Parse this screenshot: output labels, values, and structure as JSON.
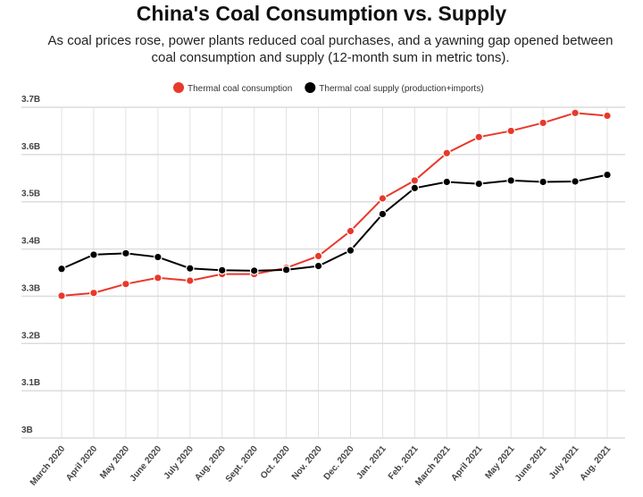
{
  "chart_data": {
    "type": "line",
    "title": "China's Coal Consumption vs. Supply",
    "subtitle": "As coal prices rose, power plants reduced coal purchases, and a yawning gap opened between coal consumption and supply (12-month sum in metric tons).",
    "categories": [
      "March 2020",
      "April 2020",
      "May 2020",
      "June 2020",
      "July 2020",
      "Aug. 2020",
      "Sept. 2020",
      "Oct. 2020",
      "Nov. 2020",
      "Dec. 2020",
      "Jan. 2021",
      "Feb. 2021",
      "March 2021",
      "April 2021",
      "May 2021",
      "June 2021",
      "July 2021",
      "Aug. 2021"
    ],
    "yticks": [
      3.0,
      3.1,
      3.2,
      3.3,
      3.4,
      3.5,
      3.6,
      3.7
    ],
    "ytick_labels": [
      "3B",
      "3.1B",
      "3.2B",
      "3.3B",
      "3.4B",
      "3.5B",
      "3.6B",
      "3.7B"
    ],
    "ylim": [
      3.0,
      3.7
    ],
    "yunit": "billion metric tons",
    "grid": true,
    "legend_position": "top",
    "series": [
      {
        "name": "Thermal coal consumption",
        "color": "#e8392b",
        "values": [
          3.301,
          3.307,
          3.326,
          3.339,
          3.333,
          3.347,
          3.347,
          3.36,
          3.385,
          3.438,
          3.507,
          3.545,
          3.603,
          3.637,
          3.65,
          3.667,
          3.688,
          3.682
        ]
      },
      {
        "name": "Thermal coal supply (production+imports)",
        "color": "#000000",
        "values": [
          3.358,
          3.388,
          3.391,
          3.383,
          3.359,
          3.355,
          3.354,
          3.356,
          3.364,
          3.397,
          3.474,
          3.529,
          3.542,
          3.538,
          3.545,
          3.542,
          3.543,
          3.557
        ]
      }
    ]
  }
}
